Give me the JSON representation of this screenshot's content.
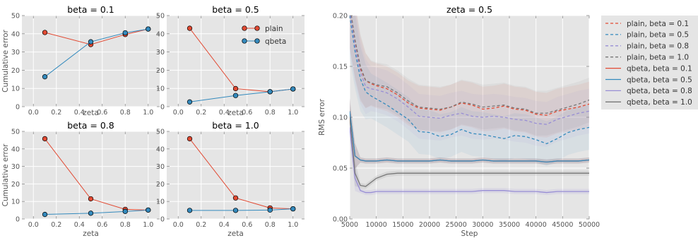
{
  "colors": {
    "plain": "#e24a33",
    "qbeta": "#348abd",
    "beta_01": "#e24a33",
    "beta_05": "#348abd",
    "beta_08": "#988ed5",
    "beta_10": "#777777"
  },
  "chart_data": [
    {
      "type": "line",
      "title": "beta = 0.1",
      "xlabel": "zeta",
      "ylabel": "Cumulative error",
      "x": [
        0.1,
        0.5,
        0.8,
        1.0
      ],
      "xticks": [
        "0.0",
        "0.2",
        "0.4",
        "0.6",
        "0.8",
        "1.0"
      ],
      "yticks": [
        "0",
        "10",
        "20",
        "30",
        "40",
        "50"
      ],
      "xlim": [
        -0.1,
        1.1
      ],
      "ylim": [
        0,
        50
      ],
      "series": [
        {
          "name": "plain",
          "values": [
            40.7,
            34.1,
            39.6,
            42.6
          ]
        },
        {
          "name": "qbeta",
          "values": [
            16.4,
            35.6,
            40.5,
            42.6
          ]
        }
      ]
    },
    {
      "type": "line",
      "title": "beta = 0.5",
      "xlabel": "zeta",
      "ylabel": "",
      "x": [
        0.1,
        0.5,
        0.8,
        1.0
      ],
      "xticks": [
        "0.0",
        "0.2",
        "0.4",
        "0.6",
        "0.8",
        "1.0"
      ],
      "yticks": [
        "0",
        "10",
        "20",
        "30",
        "40",
        "50"
      ],
      "xlim": [
        -0.1,
        1.1
      ],
      "ylim": [
        0,
        50
      ],
      "legend": {
        "placement": "top-right",
        "entries": [
          "plain",
          "qbeta"
        ]
      },
      "series": [
        {
          "name": "plain",
          "values": [
            43.0,
            9.9,
            8.2,
            9.7
          ]
        },
        {
          "name": "qbeta",
          "values": [
            2.6,
            6.1,
            8.2,
            9.7
          ]
        }
      ]
    },
    {
      "type": "line",
      "title": "beta = 0.8",
      "xlabel": "zeta",
      "ylabel": "Cumulative error",
      "x": [
        0.1,
        0.5,
        0.8,
        1.0
      ],
      "xticks": [
        "0.0",
        "0.2",
        "0.4",
        "0.6",
        "0.8",
        "1.0"
      ],
      "yticks": [
        "0",
        "10",
        "20",
        "30",
        "40",
        "50"
      ],
      "xlim": [
        -0.1,
        1.1
      ],
      "ylim": [
        0,
        50
      ],
      "series": [
        {
          "name": "plain",
          "values": [
            45.8,
            11.5,
            5.5,
            5.1
          ]
        },
        {
          "name": "qbeta",
          "values": [
            2.6,
            3.3,
            4.3,
            5.1
          ]
        }
      ]
    },
    {
      "type": "line",
      "title": "beta = 1.0",
      "xlabel": "zeta",
      "ylabel": "",
      "x": [
        0.1,
        0.5,
        0.8,
        1.0
      ],
      "xticks": [
        "0.0",
        "0.2",
        "0.4",
        "0.6",
        "0.8",
        "1.0"
      ],
      "yticks": [
        "0",
        "10",
        "20",
        "30",
        "40",
        "50"
      ],
      "xlim": [
        -0.1,
        1.1
      ],
      "ylim": [
        0,
        50
      ],
      "series": [
        {
          "name": "plain",
          "values": [
            45.8,
            12.0,
            6.3,
            5.8
          ]
        },
        {
          "name": "qbeta",
          "values": [
            4.9,
            4.9,
            5.1,
            5.8
          ]
        }
      ]
    },
    {
      "type": "line",
      "title": "zeta = 0.5",
      "xlabel": "Step",
      "ylabel": "RMS error",
      "xlim": [
        5000,
        50000
      ],
      "ylim": [
        0,
        0.2
      ],
      "xticks": [
        "5000",
        "10000",
        "15000",
        "20000",
        "25000",
        "30000",
        "35000",
        "40000",
        "45000",
        "50000"
      ],
      "yticks": [
        "0.00",
        "0.05",
        "0.10",
        "0.15",
        "0.20"
      ],
      "legend": {
        "placement": "outside-right"
      },
      "x": [
        5000,
        6000,
        7000,
        8000,
        9000,
        10000,
        12000,
        14000,
        16000,
        18000,
        20000,
        22000,
        24000,
        26000,
        28000,
        30000,
        32000,
        34000,
        36000,
        38000,
        40000,
        42000,
        44000,
        46000,
        48000,
        50000
      ],
      "series": [
        {
          "name": "plain, beta = 0.1",
          "style": "dashed",
          "color_key": "beta_01",
          "values": [
            0.21,
            0.175,
            0.148,
            0.136,
            0.133,
            0.131,
            0.128,
            0.122,
            0.114,
            0.109,
            0.108,
            0.107,
            0.11,
            0.114,
            0.112,
            0.108,
            0.109,
            0.111,
            0.108,
            0.107,
            0.103,
            0.102,
            0.106,
            0.108,
            0.11,
            0.113
          ]
        },
        {
          "name": "plain, beta = 0.5",
          "style": "dashed",
          "color_key": "beta_05",
          "values": [
            0.2,
            0.165,
            0.138,
            0.125,
            0.121,
            0.118,
            0.112,
            0.105,
            0.098,
            0.086,
            0.085,
            0.081,
            0.083,
            0.088,
            0.084,
            0.083,
            0.081,
            0.079,
            0.082,
            0.081,
            0.078,
            0.074,
            0.079,
            0.085,
            0.088,
            0.09
          ]
        },
        {
          "name": "plain, beta = 0.8",
          "style": "dashed",
          "color_key": "beta_08",
          "values": [
            0.205,
            0.17,
            0.145,
            0.13,
            0.128,
            0.127,
            0.124,
            0.118,
            0.11,
            0.101,
            0.1,
            0.099,
            0.102,
            0.104,
            0.101,
            0.1,
            0.101,
            0.1,
            0.098,
            0.097,
            0.094,
            0.093,
            0.098,
            0.101,
            0.104,
            0.106
          ]
        },
        {
          "name": "plain, beta = 1.0",
          "style": "dashed",
          "color_key": "beta_10",
          "values": [
            0.21,
            0.176,
            0.15,
            0.136,
            0.134,
            0.132,
            0.13,
            0.124,
            0.116,
            0.11,
            0.109,
            0.108,
            0.11,
            0.115,
            0.113,
            0.11,
            0.111,
            0.112,
            0.109,
            0.108,
            0.104,
            0.104,
            0.107,
            0.11,
            0.113,
            0.117
          ]
        },
        {
          "name": "qbeta, beta = 0.1",
          "style": "solid",
          "color_key": "beta_01",
          "values": [
            0.106,
            0.062,
            0.058,
            0.057,
            0.057,
            0.057,
            0.058,
            0.057,
            0.057,
            0.057,
            0.057,
            0.058,
            0.057,
            0.057,
            0.057,
            0.058,
            0.057,
            0.057,
            0.057,
            0.057,
            0.057,
            0.056,
            0.057,
            0.057,
            0.057,
            0.058
          ]
        },
        {
          "name": "qbeta, beta = 0.5",
          "style": "solid",
          "color_key": "beta_05",
          "values": [
            0.106,
            0.062,
            0.058,
            0.057,
            0.057,
            0.057,
            0.058,
            0.057,
            0.057,
            0.057,
            0.057,
            0.058,
            0.057,
            0.057,
            0.057,
            0.058,
            0.057,
            0.057,
            0.057,
            0.057,
            0.057,
            0.056,
            0.057,
            0.057,
            0.057,
            0.058
          ]
        },
        {
          "name": "qbeta, beta = 0.8",
          "style": "solid",
          "color_key": "beta_08",
          "values": [
            0.09,
            0.04,
            0.028,
            0.026,
            0.026,
            0.027,
            0.027,
            0.027,
            0.027,
            0.027,
            0.027,
            0.027,
            0.027,
            0.027,
            0.027,
            0.028,
            0.028,
            0.028,
            0.027,
            0.027,
            0.027,
            0.026,
            0.027,
            0.027,
            0.027,
            0.027
          ]
        },
        {
          "name": "qbeta, beta = 1.0",
          "style": "solid",
          "color_key": "beta_10",
          "values": [
            0.1,
            0.045,
            0.033,
            0.032,
            0.036,
            0.04,
            0.044,
            0.045,
            0.045,
            0.045,
            0.045,
            0.045,
            0.045,
            0.045,
            0.045,
            0.045,
            0.045,
            0.045,
            0.045,
            0.045,
            0.045,
            0.045,
            0.045,
            0.045,
            0.045,
            0.045
          ]
        }
      ]
    }
  ]
}
